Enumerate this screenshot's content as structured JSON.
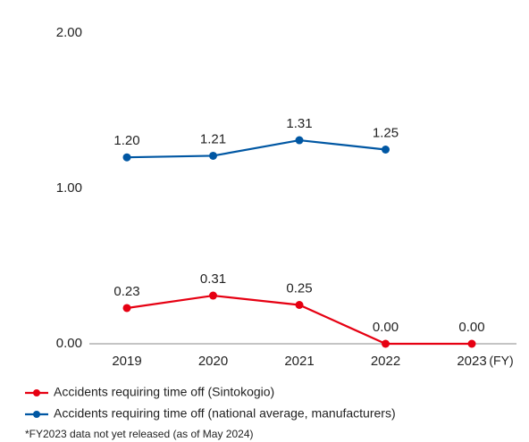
{
  "chart_data": {
    "type": "line",
    "categories": [
      "2019",
      "2020",
      "2021",
      "2022",
      "2023"
    ],
    "xlabel": "(FY)",
    "series": [
      {
        "name": "Accidents requiring time off (Sintokogio)",
        "color": "#e60012",
        "values": [
          0.23,
          0.31,
          0.25,
          0,
          0
        ],
        "value_labels": [
          "0.23",
          "0.31",
          "0.25",
          "0.00",
          "0.00"
        ]
      },
      {
        "name": "Accidents requiring time off (national average, manufacturers)",
        "color": "#0057a3",
        "values": [
          1.2,
          1.21,
          1.31,
          1.25,
          null
        ],
        "value_labels": [
          "1.20",
          "1.21",
          "1.31",
          "1.25",
          null
        ]
      }
    ],
    "ylim": [
      0,
      2
    ],
    "yticks": [
      {
        "value": 0,
        "label": "0.00"
      },
      {
        "value": 1,
        "label": "1.00"
      },
      {
        "value": 2,
        "label": "2.00"
      }
    ],
    "grid": false,
    "footnote": "*FY2023 data not yet released (as of May 2024)"
  }
}
